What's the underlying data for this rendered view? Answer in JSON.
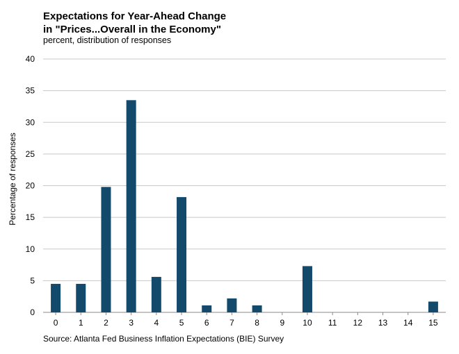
{
  "chart_data": {
    "type": "bar",
    "title": [
      "Expectations for Year-Ahead  Change",
      "in \"Prices...Overall in the Economy\""
    ],
    "subtitle": "percent, distribution of responses",
    "ylabel": "Percentage of responses",
    "xlabel": "",
    "source": "Source: Atlanta Fed Business Inflation Expectations (BIE) Survey",
    "categories": [
      "0",
      "1",
      "2",
      "3",
      "4",
      "5",
      "6",
      "7",
      "8",
      "9",
      "10",
      "11",
      "12",
      "13",
      "14",
      "15"
    ],
    "values": [
      4.5,
      4.5,
      19.8,
      33.5,
      5.6,
      18.2,
      1.1,
      2.2,
      1.1,
      0,
      7.3,
      0,
      0,
      0,
      0,
      1.7
    ],
    "ylim": [
      0,
      40
    ],
    "yticks": [
      "0",
      "5",
      "10",
      "15",
      "20",
      "25",
      "30",
      "35",
      "40"
    ],
    "grid": true,
    "bar_color": "#134a6b"
  }
}
